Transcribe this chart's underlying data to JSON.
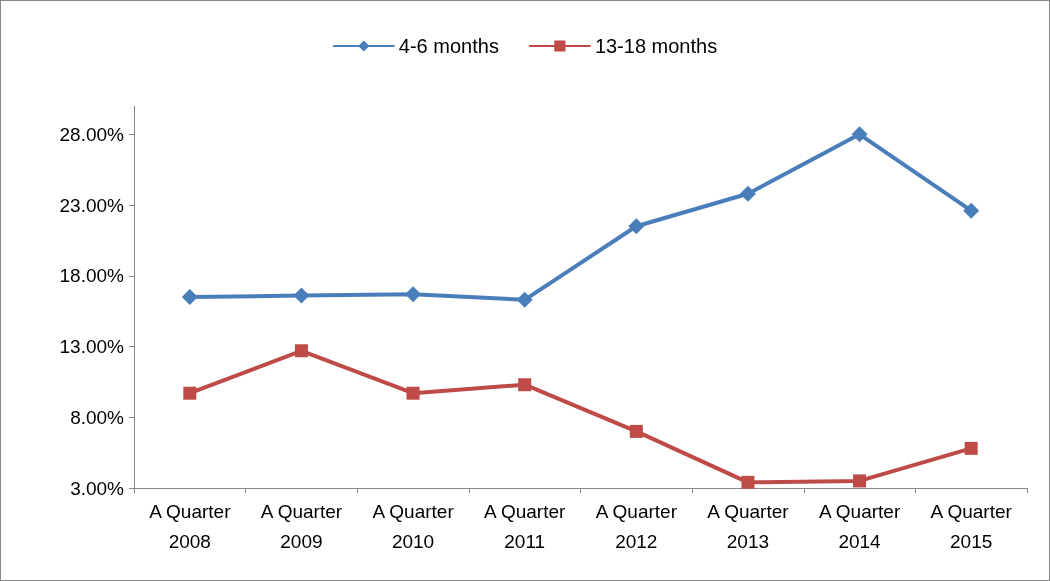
{
  "chart_data": {
    "type": "line",
    "categories": [
      "A Quarter 2008",
      "A Quarter 2009",
      "A Quarter 2010",
      "A Quarter 2011",
      "A Quarter 2012",
      "A Quarter 2013",
      "A Quarter 2014",
      "A Quarter 2015"
    ],
    "series": [
      {
        "name": "4-6 months",
        "color": "#4a7ebb",
        "marker": "diamond",
        "values": [
          16.5,
          16.6,
          16.7,
          16.3,
          21.5,
          23.8,
          28.0,
          22.6
        ]
      },
      {
        "name": "13-18 months",
        "color": "#be4b48",
        "marker": "square",
        "values": [
          9.7,
          12.7,
          9.7,
          10.3,
          7.0,
          3.4,
          3.5,
          5.8
        ]
      }
    ],
    "ylim": [
      3,
      30
    ],
    "yticks": [
      {
        "value": 3,
        "label": "3.00%"
      },
      {
        "value": 8,
        "label": "8.00%"
      },
      {
        "value": 13,
        "label": "13.00%"
      },
      {
        "value": 18,
        "label": "18.00%"
      },
      {
        "value": 23,
        "label": "23.00%"
      },
      {
        "value": 28,
        "label": "28.00%"
      }
    ],
    "grid": false,
    "legend": "top",
    "line_style": "solid"
  }
}
